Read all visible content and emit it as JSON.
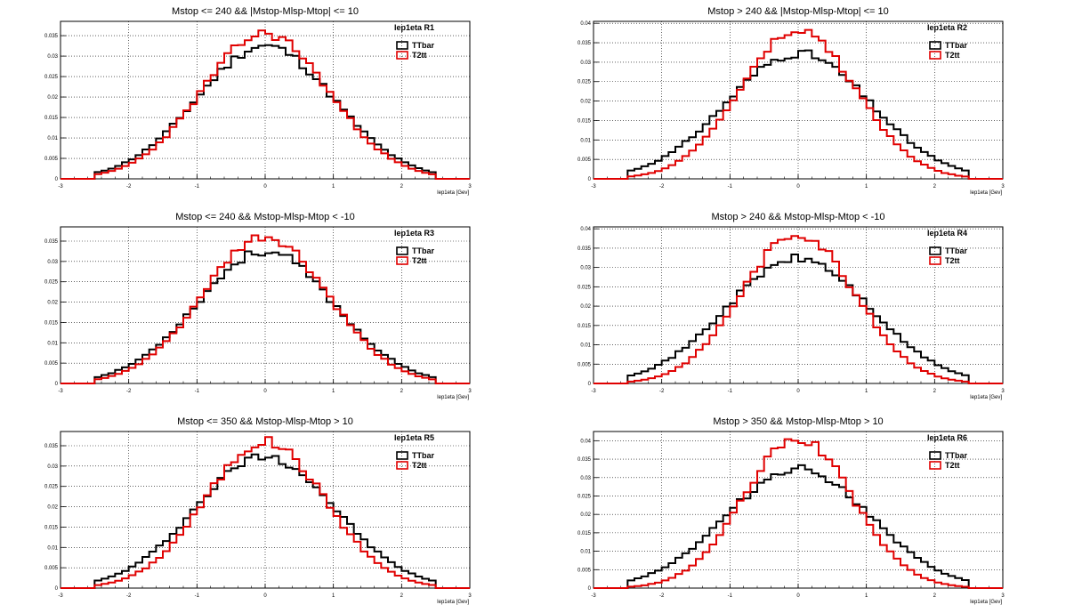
{
  "chart_data": [
    {
      "type": "histogram",
      "title": "Mstop <= 240 && |Mstop-Mlsp-Mtop| <= 10",
      "stat_label": "lep1eta  R1",
      "xlabel": "lep1eta [Gev]",
      "ylabel": "",
      "xlim": [
        -3,
        3
      ],
      "ylim": [
        0,
        0.0385
      ],
      "x_ticks": [
        -3,
        -2,
        -1,
        0,
        1,
        2,
        3
      ],
      "y_ticks": [
        0,
        0.005,
        0.01,
        0.015,
        0.02,
        0.025,
        0.03,
        0.035
      ],
      "y_tick_labels": [
        "0",
        "0.005",
        "0.01",
        "0.015",
        "0.02",
        "0.025",
        "0.03",
        "0.035"
      ],
      "bins": {
        "start": -3,
        "width": 0.1,
        "count": 60
      },
      "series": [
        {
          "name": "TTbar",
          "color": "#000000",
          "peak": 0.0325,
          "sigma": 1.0,
          "edge": 2.45,
          "seed": 11
        },
        {
          "name": "T2tt",
          "color": "#e00000",
          "peak": 0.0355,
          "sigma": 0.93,
          "edge": 2.45,
          "seed": 23
        }
      ]
    },
    {
      "type": "histogram",
      "title": "Mstop > 240 && |Mstop-Mlsp-Mtop| <= 10",
      "stat_label": "lep1eta  R2",
      "xlabel": "lep1eta [Gev]",
      "ylabel": "",
      "xlim": [
        -3,
        3
      ],
      "ylim": [
        0,
        0.0405
      ],
      "x_ticks": [
        -3,
        -2,
        -1,
        0,
        1,
        2,
        3
      ],
      "y_ticks": [
        0,
        0.005,
        0.01,
        0.015,
        0.02,
        0.025,
        0.03,
        0.035,
        0.04
      ],
      "y_tick_labels": [
        "0",
        "0.005",
        "0.01",
        "0.015",
        "0.02",
        "0.025",
        "0.03",
        "0.035",
        "0.04"
      ],
      "bins": {
        "start": -3,
        "width": 0.1,
        "count": 60
      },
      "series": [
        {
          "name": "TTbar",
          "color": "#000000",
          "peak": 0.0323,
          "sigma": 1.05,
          "edge": 2.45,
          "seed": 31
        },
        {
          "name": "T2tt",
          "color": "#e00000",
          "peak": 0.038,
          "sigma": 0.85,
          "edge": 2.45,
          "seed": 47
        }
      ]
    },
    {
      "type": "histogram",
      "title": "Mstop <= 240 && Mstop-Mlsp-Mtop < -10",
      "stat_label": "lep1eta  R3",
      "xlabel": "lep1eta [Gev]",
      "ylabel": "",
      "xlim": [
        -3,
        3
      ],
      "ylim": [
        0,
        0.0385
      ],
      "x_ticks": [
        -3,
        -2,
        -1,
        0,
        1,
        2,
        3
      ],
      "y_ticks": [
        0,
        0.005,
        0.01,
        0.015,
        0.02,
        0.025,
        0.03,
        0.035
      ],
      "y_tick_labels": [
        "0",
        "0.005",
        "0.01",
        "0.015",
        "0.02",
        "0.025",
        "0.03",
        "0.035"
      ],
      "bins": {
        "start": -3,
        "width": 0.1,
        "count": 60
      },
      "series": [
        {
          "name": "TTbar",
          "color": "#000000",
          "peak": 0.0325,
          "sigma": 1.0,
          "edge": 2.45,
          "seed": 53
        },
        {
          "name": "T2tt",
          "color": "#e00000",
          "peak": 0.0358,
          "sigma": 0.92,
          "edge": 2.45,
          "seed": 61
        }
      ]
    },
    {
      "type": "histogram",
      "title": "Mstop > 240 && Mstop-Mlsp-Mtop < -10",
      "stat_label": "lep1eta  R4",
      "xlabel": "lep1eta [Gev]",
      "ylabel": "",
      "xlim": [
        -3,
        3
      ],
      "ylim": [
        0,
        0.0405
      ],
      "x_ticks": [
        -3,
        -2,
        -1,
        0,
        1,
        2,
        3
      ],
      "y_ticks": [
        0,
        0.005,
        0.01,
        0.015,
        0.02,
        0.025,
        0.03,
        0.035,
        0.04
      ],
      "y_tick_labels": [
        "0",
        "0.005",
        "0.01",
        "0.015",
        "0.02",
        "0.025",
        "0.03",
        "0.035",
        "0.04"
      ],
      "bins": {
        "start": -3,
        "width": 0.1,
        "count": 60
      },
      "series": [
        {
          "name": "TTbar",
          "color": "#000000",
          "peak": 0.0323,
          "sigma": 1.05,
          "edge": 2.45,
          "seed": 71
        },
        {
          "name": "T2tt",
          "color": "#e00000",
          "peak": 0.0388,
          "sigma": 0.83,
          "edge": 2.45,
          "seed": 83
        }
      ]
    },
    {
      "type": "histogram",
      "title": "Mstop <= 350 && Mstop-Mlsp-Mtop > 10",
      "stat_label": "lep1eta  R5",
      "xlabel": "lep1eta [Gev]",
      "ylabel": "",
      "xlim": [
        -3,
        3
      ],
      "ylim": [
        0,
        0.0385
      ],
      "x_ticks": [
        -3,
        -2,
        -1,
        0,
        1,
        2,
        3
      ],
      "y_ticks": [
        0,
        0.005,
        0.01,
        0.015,
        0.02,
        0.025,
        0.03,
        0.035
      ],
      "y_tick_labels": [
        "0",
        "0.005",
        "0.01",
        "0.015",
        "0.02",
        "0.025",
        "0.03",
        "0.035"
      ],
      "bins": {
        "start": -3,
        "width": 0.1,
        "count": 60
      },
      "series": [
        {
          "name": "TTbar",
          "color": "#000000",
          "peak": 0.0325,
          "sigma": 1.02,
          "edge": 2.45,
          "seed": 97
        },
        {
          "name": "T2tt",
          "color": "#e00000",
          "peak": 0.036,
          "sigma": 0.88,
          "edge": 2.45,
          "seed": 101
        }
      ]
    },
    {
      "type": "histogram",
      "title": "Mstop > 350 && Mstop-Mlsp-Mtop > 10",
      "stat_label": "lep1eta  R6",
      "xlabel": "lep1eta [Gev]",
      "ylabel": "",
      "xlim": [
        -3,
        3
      ],
      "ylim": [
        0,
        0.0425
      ],
      "x_ticks": [
        -3,
        -2,
        -1,
        0,
        1,
        2,
        3
      ],
      "y_ticks": [
        0,
        0.005,
        0.01,
        0.015,
        0.02,
        0.025,
        0.03,
        0.035,
        0.04
      ],
      "y_tick_labels": [
        "0",
        "0.005",
        "0.01",
        "0.015",
        "0.02",
        "0.025",
        "0.03",
        "0.035",
        "0.04"
      ],
      "bins": {
        "start": -3,
        "width": 0.1,
        "count": 60
      },
      "series": [
        {
          "name": "TTbar",
          "color": "#000000",
          "peak": 0.0325,
          "sigma": 1.05,
          "edge": 2.45,
          "seed": 113
        },
        {
          "name": "T2tt",
          "color": "#e00000",
          "peak": 0.0405,
          "sigma": 0.8,
          "edge": 2.45,
          "seed": 127
        }
      ]
    }
  ]
}
